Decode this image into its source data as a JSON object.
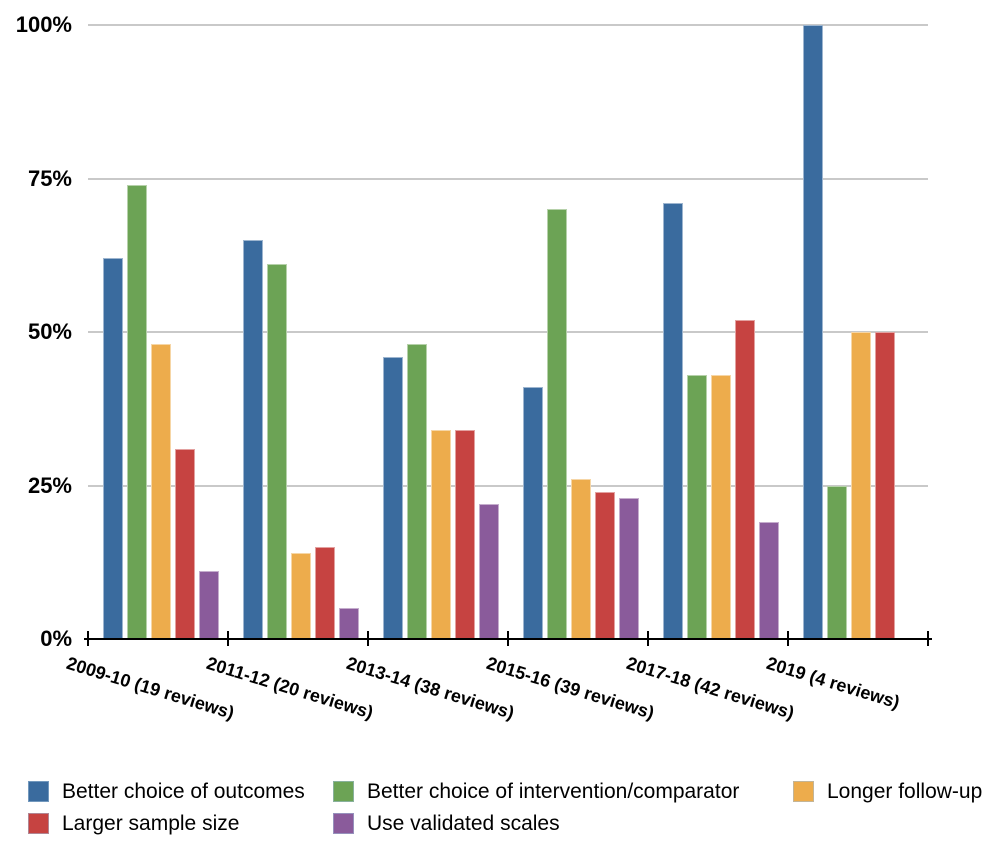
{
  "chart_data": {
    "type": "bar",
    "title": "",
    "categories": [
      "2009-10 (19 reviews)",
      "2011-12 (20 reviews)",
      "2013-14 (38 reviews)",
      "2015-16 (39 reviews)",
      "2017-18 (42 reviews)",
      "2019 (4 reviews)"
    ],
    "series": [
      {
        "name": "Better choice of outcomes",
        "color": "#3A6B9E",
        "values": [
          62,
          65,
          46,
          41,
          71,
          100
        ]
      },
      {
        "name": "Better choice of intervention/comparator",
        "color": "#6CA355",
        "values": [
          74,
          61,
          48,
          70,
          43,
          25
        ]
      },
      {
        "name": "Longer follow-up",
        "color": "#EDAC4C",
        "values": [
          48,
          14,
          34,
          26,
          43,
          50
        ]
      },
      {
        "name": "Larger sample size",
        "color": "#C64341",
        "values": [
          31,
          15,
          34,
          24,
          52,
          50
        ]
      },
      {
        "name": "Use validated scales",
        "color": "#8A5B9B",
        "values": [
          11,
          5,
          22,
          23,
          19,
          0
        ]
      }
    ],
    "y_axis": {
      "tick_labels": [
        "0%",
        "25%",
        "50%",
        "75%",
        "100%"
      ],
      "min": 0,
      "max": 100,
      "unit": "%"
    },
    "grid": true,
    "legend_position": "bottom",
    "colors": {
      "gridline": "#C9C9C9",
      "axis": "#000000",
      "text": "#000000",
      "background": "#FFFFFF"
    }
  }
}
